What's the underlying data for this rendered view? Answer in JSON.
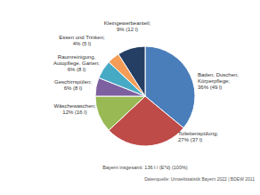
{
  "chart_data": {
    "type": "pie",
    "categories": [
      "Baden, Duschen, Körperpflege;",
      "Toilettenspülung;",
      "Wäschewaschen;",
      "Geschirrspülen;",
      "Raumreinigung, Autopflege, Garten;",
      "Essen und Trinken;",
      "Kleingewerbeanteil;"
    ],
    "values": [
      36,
      27,
      12,
      6,
      6,
      4,
      9
    ],
    "value_labels": [
      "36% (49 l)",
      "27% (37 l)",
      "12% (16 l)",
      "6% (8 l)",
      "6% (8 l)",
      "4% (5 l)",
      "9% (12 l)"
    ],
    "colors": [
      "#4a7ebb",
      "#be4b48",
      "#98b954",
      "#7d60a0",
      "#46aac5",
      "#f59d56",
      "#253e63"
    ],
    "data_labels": true,
    "annotations": [
      "Bayern insgesamt: 136 l / (E*d) (100%)",
      "Datenquelle: Umweltstatistik Bayern 2022 | BDEW 2011"
    ]
  }
}
